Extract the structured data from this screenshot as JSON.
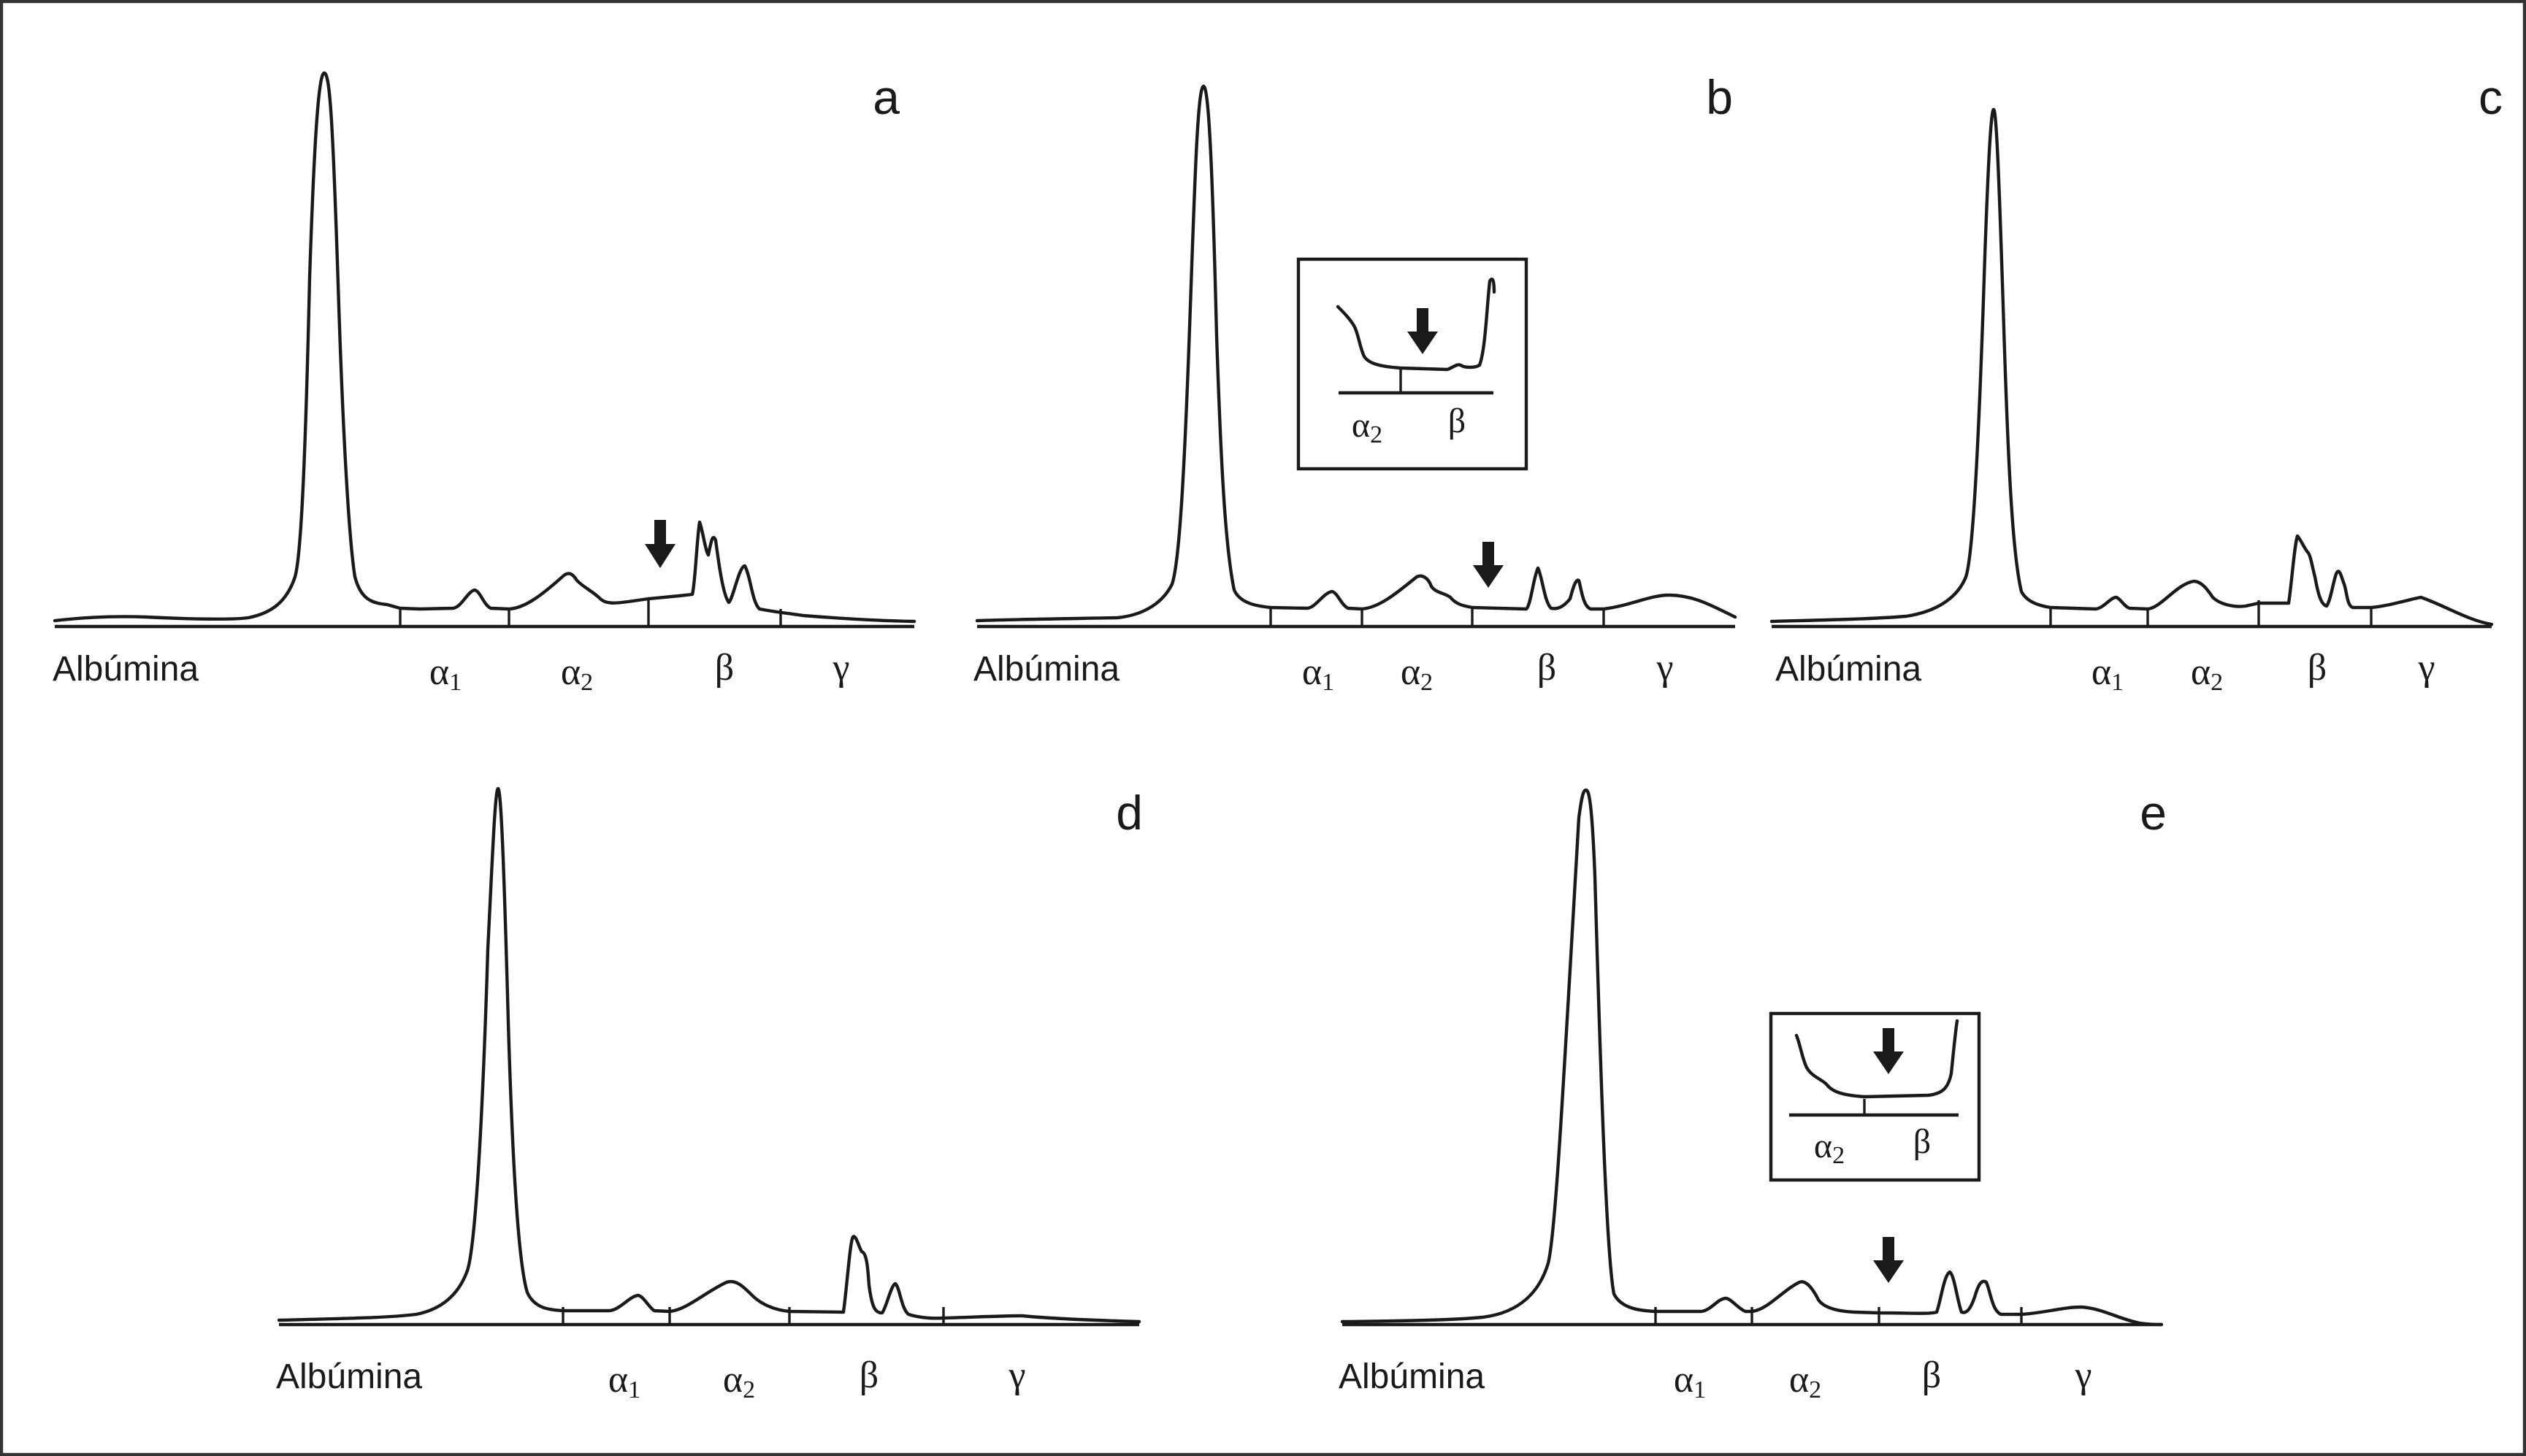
{
  "panels": [
    {
      "id": "a",
      "letter": "a",
      "albumin_label": "Albúmina",
      "fractions": [
        "α1",
        "α2",
        "β",
        "γ"
      ],
      "arrow": true,
      "inset": null
    },
    {
      "id": "b",
      "letter": "b",
      "albumin_label": "Albúmina",
      "fractions": [
        "α1",
        "α2",
        "β",
        "γ"
      ],
      "arrow": true,
      "inset": {
        "labels": [
          "α2",
          "β"
        ],
        "arrow": true
      }
    },
    {
      "id": "c",
      "letter": "c",
      "albumin_label": "Albúmina",
      "fractions": [
        "α1",
        "α2",
        "β",
        "γ"
      ],
      "arrow": false,
      "inset": null
    },
    {
      "id": "d",
      "letter": "d",
      "albumin_label": "Albúmina",
      "fractions": [
        "α1",
        "α2",
        "β",
        "γ"
      ],
      "arrow": false,
      "inset": null
    },
    {
      "id": "e",
      "letter": "e",
      "albumin_label": "Albúmina",
      "fractions": [
        "α1",
        "α2",
        "β",
        "γ"
      ],
      "arrow": true,
      "inset": {
        "labels": [
          "α2",
          "β"
        ],
        "arrow": true
      }
    }
  ],
  "colors": {
    "ink": "#1a1a1a",
    "frame": "#333333",
    "background": "#ffffff"
  },
  "icons": {
    "arrow": "down-arrow-icon"
  }
}
